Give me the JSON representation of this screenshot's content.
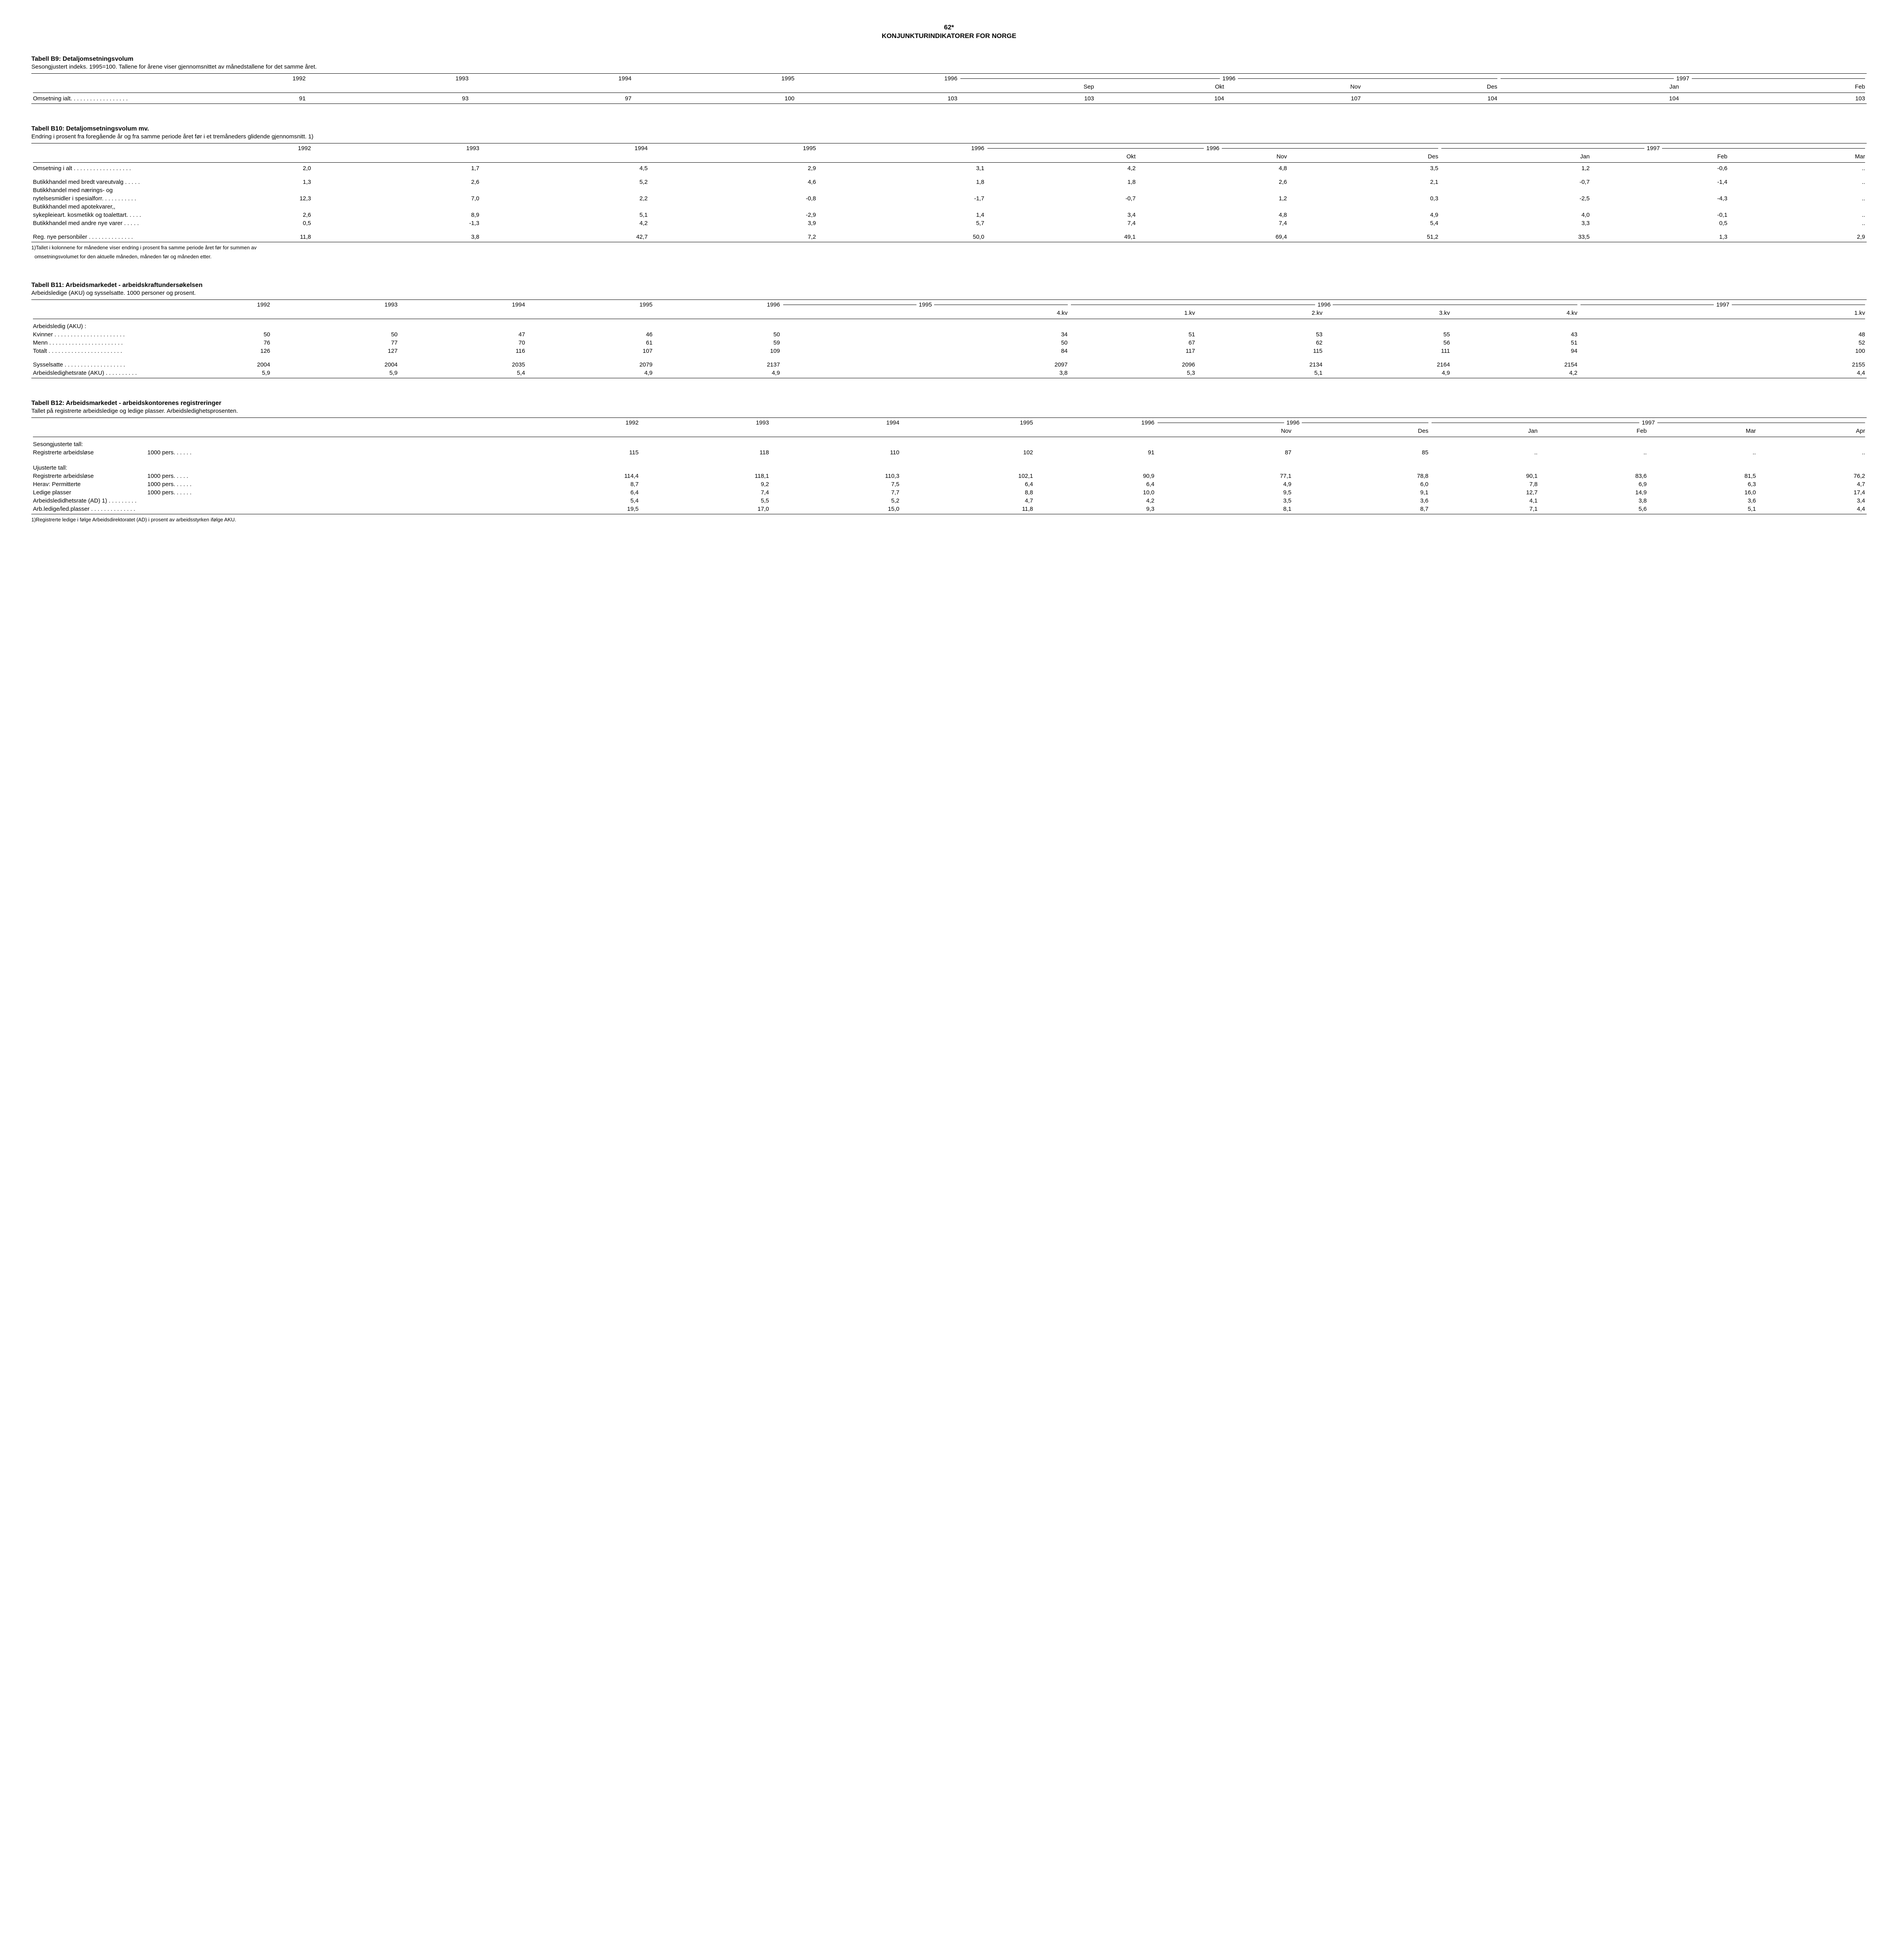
{
  "header": {
    "page_num": "62*",
    "title": "KONJUNKTURINDIKATORER FOR NORGE"
  },
  "b9": {
    "title": "Tabell B9: Detaljomsetningsvolum",
    "sub": "Sesongjustert indeks. 1995=100. Tallene for årene viser gjennomsnittet av månedstallene for det samme året.",
    "year_cols": [
      "1992",
      "1993",
      "1994",
      "1995",
      "1996"
    ],
    "group1_label": "1996",
    "group1_cols": [
      "Sep",
      "Okt",
      "Nov",
      "Des"
    ],
    "group2_label": "1997",
    "group2_cols": [
      "Jan",
      "Feb"
    ],
    "rows": [
      {
        "label": "Omsetning ialt. . . . . . . . . . . . . . . . . .",
        "v": [
          "91",
          "93",
          "97",
          "100",
          "103",
          "103",
          "104",
          "107",
          "104",
          "104",
          "103"
        ]
      }
    ]
  },
  "b10": {
    "title": "Tabell B10: Detaljomsetningsvolum mv.",
    "sub": "Endring i prosent fra foregående år og fra samme periode året før i et tremåneders glidende gjennomsnitt. 1)",
    "year_cols": [
      "1992",
      "1993",
      "1994",
      "1995",
      "1996"
    ],
    "group1_label": "1996",
    "group1_cols": [
      "Okt",
      "Nov",
      "Des"
    ],
    "group2_label": "1997",
    "group2_cols": [
      "Jan",
      "Feb",
      "Mar"
    ],
    "rows": [
      {
        "label": "Omsetning i alt . . . . . . . . . . . . . . . . . .",
        "v": [
          "2,0",
          "1,7",
          "4,5",
          "2,9",
          "3,1",
          "4,2",
          "4,8",
          "3,5",
          "1,2",
          "-0,6",
          ".."
        ]
      },
      {
        "spacer": true
      },
      {
        "label": "Butikkhandel med bredt vareutvalg . . . . .",
        "v": [
          "1,3",
          "2,6",
          "5,2",
          "4,6",
          "1,8",
          "1,8",
          "2,6",
          "2,1",
          "-0,7",
          "-1,4",
          ".."
        ]
      },
      {
        "label": "Butikkhandel med nærings- og",
        "v": [
          "",
          "",
          "",
          "",
          "",
          "",
          "",
          "",
          "",
          "",
          ""
        ]
      },
      {
        "label": "nytelsesmidler i spesialforr. . . . . . . . . . .",
        "v": [
          "12,3",
          "7,0",
          "2,2",
          "-0,8",
          "-1,7",
          "-0,7",
          "1,2",
          "0,3",
          "-2,5",
          "-4,3",
          ".."
        ]
      },
      {
        "label": "Butikkhandel med apotekvarer,,",
        "v": [
          "",
          "",
          "",
          "",
          "",
          "",
          "",
          "",
          "",
          "",
          ""
        ]
      },
      {
        "label": "sykepleieart. kosmetikk og toalettart. . . . .",
        "v": [
          "2,6",
          "8,9",
          "5,1",
          "-2,9",
          "1,4",
          "3,4",
          "4,8",
          "4,9",
          "4,0",
          "-0,1",
          ".."
        ]
      },
      {
        "label": "Butikkhandel med andre nye varer . . . . .",
        "v": [
          "0,5",
          "-1,3",
          "4,2",
          "3,9",
          "5,7",
          "7,4",
          "7,4",
          "5,4",
          "3,3",
          "0,5",
          ".."
        ]
      },
      {
        "spacer": true
      },
      {
        "label": "Reg. nye personbiler . . . . . . . . . . . . . .",
        "v": [
          "11,8",
          "3,8",
          "42,7",
          "7,2",
          "50,0",
          "49,1",
          "69,4",
          "51,2",
          "33,5",
          "1,3",
          "2,9"
        ]
      }
    ],
    "foot1": "1)Tallet i kolonnene for månedene viser endring i prosent fra samme periode året før for summen av",
    "foot2": "omsetningsvolumet for den aktuelle måneden, måneden før og måneden etter."
  },
  "b11": {
    "title": "Tabell B11: Arbeidsmarkedet - arbeidskraftundersøkelsen",
    "sub": "Arbeidsledige (AKU) og sysselsatte. 1000 personer og prosent.",
    "year_cols": [
      "1992",
      "1993",
      "1994",
      "1995",
      "1996"
    ],
    "group0_label": "1995",
    "group0_cols": [
      "4.kv"
    ],
    "group1_label": "1996",
    "group1_cols": [
      "1.kv",
      "2.kv",
      "3.kv",
      "4.kv"
    ],
    "group2_label": "1997",
    "group2_cols": [
      "1.kv"
    ],
    "section_label": "Arbeidsledig (AKU) :",
    "rows1": [
      {
        "label": "Kvinner . . . . . . . . . . . . . . . . . . . . . .",
        "v": [
          "50",
          "50",
          "47",
          "46",
          "50",
          "34",
          "51",
          "53",
          "55",
          "43",
          "48"
        ]
      },
      {
        "label": "Menn . . . . . . . . . . . . . . . . . . . . . . .",
        "v": [
          "76",
          "77",
          "70",
          "61",
          "59",
          "50",
          "67",
          "62",
          "56",
          "51",
          "52"
        ]
      },
      {
        "label": "Totalt . . . . . . . . . . . . . . . . . . . . . . .",
        "v": [
          "126",
          "127",
          "116",
          "107",
          "109",
          "84",
          "117",
          "115",
          "111",
          "94",
          "100"
        ]
      }
    ],
    "rows2": [
      {
        "label": "Sysselsatte . . . . . . . . . . . . . . . . . . .",
        "v": [
          "2004",
          "2004",
          "2035",
          "2079",
          "2137",
          "2097",
          "2096",
          "2134",
          "2164",
          "2154",
          "2155"
        ]
      },
      {
        "label": "Arbeidsledighetsrate (AKU) . . . . . . . . . .",
        "v": [
          "5,9",
          "5,9",
          "5,4",
          "4,9",
          "4,9",
          "3,8",
          "5,3",
          "5,1",
          "4,9",
          "4,2",
          "4,4"
        ]
      }
    ]
  },
  "b12": {
    "title": "Tabell B12: Arbeidsmarkedet - arbeidskontorenes registreringer",
    "sub": "Tallet på registrerte arbeidsledige og ledige plasser. Arbeidsledighetsprosenten.",
    "year_cols": [
      "1992",
      "1993",
      "1994",
      "1995",
      "1996"
    ],
    "group1_label": "1996",
    "group1_cols": [
      "Nov",
      "Des"
    ],
    "group2_label": "1997",
    "group2_cols": [
      "Jan",
      "Feb",
      "Mar",
      "Apr"
    ],
    "section1": "Sesongjusterte tall:",
    "rows1": [
      {
        "label": "Registrerte arbeidsløse",
        "unit": "1000 pers. . . . . .",
        "v": [
          "115",
          "118",
          "110",
          "102",
          "91",
          "87",
          "85",
          "..",
          "..",
          "..",
          ".."
        ]
      }
    ],
    "section2": "Ujusterte tall:",
    "rows2": [
      {
        "label": "Registrerte arbeidsløse",
        "unit": "1000 pers. . . . .",
        "v": [
          "114,4",
          "118,1",
          "110,3",
          "102,1",
          "90,9",
          "77,1",
          "78,8",
          "90,1",
          "83,6",
          "81,5",
          "76,2"
        ]
      },
      {
        "label": "Herav: Permitterte",
        "unit": "1000 pers. . . . . .",
        "v": [
          "8,7",
          "9,2",
          "7,5",
          "6,4",
          "6,4",
          "4,9",
          "6,0",
          "7,8",
          "6,9",
          "6,3",
          "4,7"
        ]
      },
      {
        "label": "Ledige plasser",
        "unit": "1000 pers. . . . . .",
        "v": [
          "6,4",
          "7,4",
          "7,7",
          "8,8",
          "10,0",
          "9,5",
          "9,1",
          "12,7",
          "14,9",
          "16,0",
          "17,4"
        ]
      },
      {
        "label": "Arbeidsledidhetsrate (AD) 1) . . . . . . . . .",
        "unit": "",
        "v": [
          "5,4",
          "5,5",
          "5,2",
          "4,7",
          "4,2",
          "3,5",
          "3,6",
          "4,1",
          "3,8",
          "3,6",
          "3,4"
        ]
      },
      {
        "label": "Arb.ledige/led.plasser . . . . . . . . . . . . . .",
        "unit": "",
        "v": [
          "19,5",
          "17,0",
          "15,0",
          "11,8",
          "9,3",
          "8,1",
          "8,7",
          "7,1",
          "5,6",
          "5,1",
          "4,4"
        ]
      }
    ],
    "foot": "1)Registrerte ledige i følge Arbeidsdirektoratet (AD) i prosent av arbeidsstyrken ifølge AKU."
  }
}
